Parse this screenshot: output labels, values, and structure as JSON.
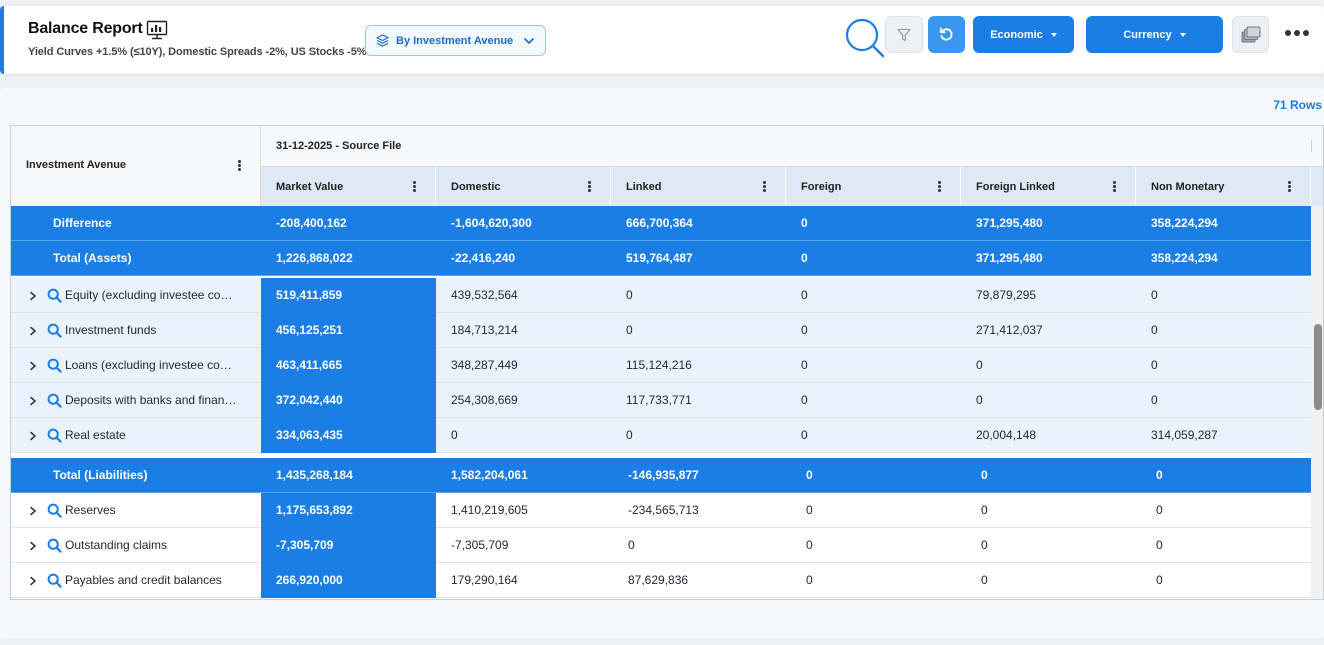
{
  "header": {
    "title": "Balance Report",
    "subtitle": "Yield Curves +1.5% (≤10Y), Domestic Spreads -2%, US Stocks -5%",
    "avenue_dropdown": "By Investment Avenue",
    "economic_label": "Economic",
    "currency_label": "Currency"
  },
  "grid": {
    "rows_count": "71 Rows",
    "left_header": "Investment Avenue",
    "group_header": "31-12-2025 - Source File",
    "columns": [
      "Market Value",
      "Domestic",
      "Linked",
      "Foreign",
      "Foreign Linked",
      "Non Monetary"
    ],
    "rows": [
      {
        "type": "total",
        "label": "Difference",
        "values": [
          "-208,400,162",
          "-1,604,620,300",
          "666,700,364",
          "0",
          "371,295,480",
          "358,224,294"
        ]
      },
      {
        "type": "total",
        "label": "Total (Assets)",
        "values": [
          "1,226,868,022",
          "-22,416,240",
          "519,764,487",
          "0",
          "371,295,480",
          "358,224,294"
        ]
      },
      {
        "type": "asset",
        "label": "Equity (excluding investee companies)",
        "values": [
          "519,411,859",
          "439,532,564",
          "0",
          "0",
          "79,879,295",
          "0"
        ]
      },
      {
        "type": "asset",
        "label": "Investment funds",
        "values": [
          "456,125,251",
          "184,713,214",
          "0",
          "0",
          "271,412,037",
          "0"
        ]
      },
      {
        "type": "asset",
        "label": "Loans (excluding investee companies)",
        "values": [
          "463,411,665",
          "348,287,449",
          "115,124,216",
          "0",
          "0",
          "0"
        ]
      },
      {
        "type": "asset",
        "label": "Deposits with banks and financial institutions",
        "values": [
          "372,042,440",
          "254,308,669",
          "117,733,771",
          "0",
          "0",
          "0"
        ]
      },
      {
        "type": "asset",
        "label": "Real estate",
        "values": [
          "334,063,435",
          "0",
          "0",
          "0",
          "20,004,148",
          "314,059,287"
        ]
      },
      {
        "type": "total",
        "label": "Total (Liabilities)",
        "values": [
          "1,435,268,184",
          "1,582,204,061",
          "-146,935,877",
          "0",
          "0",
          "0"
        ]
      },
      {
        "type": "liab",
        "label": "Reserves",
        "values": [
          "1,175,653,892",
          "1,410,219,605",
          "-234,565,713",
          "0",
          "0",
          "0"
        ]
      },
      {
        "type": "liab",
        "label": "Outstanding claims",
        "values": [
          "-7,305,709",
          "-7,305,709",
          "0",
          "0",
          "0",
          "0"
        ]
      },
      {
        "type": "liab",
        "label": "Payables and credit balances",
        "values": [
          "266,920,000",
          "179,290,164",
          "87,629,836",
          "0",
          "0",
          "0"
        ]
      }
    ]
  },
  "icons": {
    "title": "report-monitor-icon",
    "avenue": "layers-icon",
    "search": "search-icon",
    "filter": "filter-icon",
    "refresh": "refresh-icon",
    "cards": "cards-icon",
    "more": "more-horizontal-icon",
    "row_search": "search-icon",
    "expander": "chevron-right-icon"
  },
  "colors": {
    "accent": "#1a7ee6",
    "asset_row": "#eaf3fc",
    "header_cols": "#dde9f5"
  }
}
